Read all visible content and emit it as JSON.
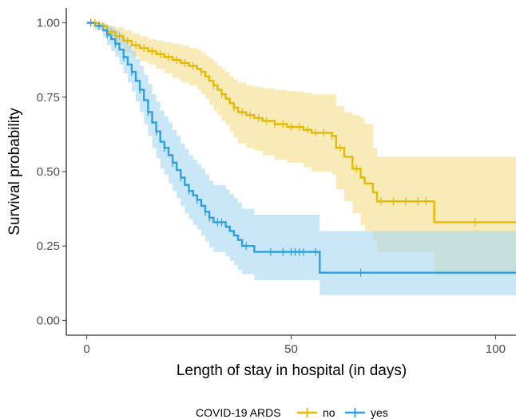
{
  "chart_data": {
    "type": "line",
    "subtype": "kaplan-meier step curves with confidence bands and censor marks",
    "title": "",
    "xlabel": "Length of stay in hospital (in days)",
    "ylabel": "Survival probability",
    "xlim": [
      -5,
      105
    ],
    "ylim": [
      -0.05,
      1.05
    ],
    "x_ticks": [
      0,
      50,
      100
    ],
    "x_tick_labels": [
      "0",
      "50",
      "100"
    ],
    "y_ticks": [
      0,
      0.25,
      0.5,
      0.75,
      1.0
    ],
    "y_tick_labels": [
      "0.00",
      "0.25",
      "0.50",
      "0.75",
      "1.00"
    ],
    "grid": false,
    "legend": {
      "title": "COVID-19 ARDS",
      "position": "bottom",
      "entries": [
        "no",
        "yes"
      ]
    },
    "series": [
      {
        "name": "no",
        "color": "#e7b800",
        "fill_color": "#f3df8d",
        "steps": [
          [
            0,
            1.0
          ],
          [
            3,
            0.99
          ],
          [
            5,
            0.97
          ],
          [
            7,
            0.955
          ],
          [
            9,
            0.94
          ],
          [
            11,
            0.925
          ],
          [
            13,
            0.915
          ],
          [
            15,
            0.905
          ],
          [
            17,
            0.895
          ],
          [
            19,
            0.885
          ],
          [
            21,
            0.875
          ],
          [
            23,
            0.865
          ],
          [
            25,
            0.855
          ],
          [
            27,
            0.845
          ],
          [
            28,
            0.835
          ],
          [
            29,
            0.82
          ],
          [
            30,
            0.805
          ],
          [
            31,
            0.79
          ],
          [
            32,
            0.775
          ],
          [
            33,
            0.76
          ],
          [
            34,
            0.745
          ],
          [
            35,
            0.73
          ],
          [
            36,
            0.715
          ],
          [
            37,
            0.7
          ],
          [
            39,
            0.69
          ],
          [
            41,
            0.68
          ],
          [
            43,
            0.67
          ],
          [
            46,
            0.66
          ],
          [
            49,
            0.65
          ],
          [
            53,
            0.64
          ],
          [
            55,
            0.63
          ],
          [
            60,
            0.62
          ],
          [
            61,
            0.58
          ],
          [
            63,
            0.55
          ],
          [
            65,
            0.51
          ],
          [
            67,
            0.48
          ],
          [
            68,
            0.46
          ],
          [
            70,
            0.43
          ],
          [
            71,
            0.4
          ],
          [
            85,
            0.33
          ],
          [
            105,
            0.33
          ]
        ],
        "lower": [
          [
            0,
            1.0
          ],
          [
            3,
            0.98
          ],
          [
            5,
            0.95
          ],
          [
            7,
            0.925
          ],
          [
            9,
            0.9
          ],
          [
            11,
            0.885
          ],
          [
            13,
            0.87
          ],
          [
            15,
            0.86
          ],
          [
            17,
            0.845
          ],
          [
            19,
            0.83
          ],
          [
            21,
            0.815
          ],
          [
            23,
            0.8
          ],
          [
            25,
            0.79
          ],
          [
            27,
            0.775
          ],
          [
            28,
            0.76
          ],
          [
            29,
            0.745
          ],
          [
            30,
            0.725
          ],
          [
            31,
            0.705
          ],
          [
            32,
            0.69
          ],
          [
            33,
            0.67
          ],
          [
            34,
            0.655
          ],
          [
            35,
            0.635
          ],
          [
            36,
            0.615
          ],
          [
            37,
            0.595
          ],
          [
            39,
            0.58
          ],
          [
            41,
            0.57
          ],
          [
            43,
            0.555
          ],
          [
            46,
            0.54
          ],
          [
            49,
            0.53
          ],
          [
            53,
            0.515
          ],
          [
            55,
            0.5
          ],
          [
            60,
            0.49
          ],
          [
            61,
            0.44
          ],
          [
            63,
            0.4
          ],
          [
            65,
            0.36
          ],
          [
            67,
            0.32
          ],
          [
            68,
            0.3
          ],
          [
            70,
            0.27
          ],
          [
            71,
            0.23
          ],
          [
            85,
            0.15
          ],
          [
            105,
            0.15
          ]
        ],
        "upper": [
          [
            0,
            1.0
          ],
          [
            3,
            1.0
          ],
          [
            5,
            0.99
          ],
          [
            7,
            0.985
          ],
          [
            9,
            0.975
          ],
          [
            11,
            0.965
          ],
          [
            13,
            0.955
          ],
          [
            15,
            0.945
          ],
          [
            17,
            0.94
          ],
          [
            19,
            0.935
          ],
          [
            21,
            0.93
          ],
          [
            23,
            0.925
          ],
          [
            25,
            0.915
          ],
          [
            27,
            0.91
          ],
          [
            28,
            0.9
          ],
          [
            29,
            0.89
          ],
          [
            30,
            0.88
          ],
          [
            31,
            0.87
          ],
          [
            32,
            0.855
          ],
          [
            33,
            0.845
          ],
          [
            34,
            0.835
          ],
          [
            35,
            0.82
          ],
          [
            36,
            0.81
          ],
          [
            37,
            0.8
          ],
          [
            39,
            0.79
          ],
          [
            41,
            0.785
          ],
          [
            43,
            0.78
          ],
          [
            46,
            0.775
          ],
          [
            49,
            0.77
          ],
          [
            53,
            0.765
          ],
          [
            55,
            0.76
          ],
          [
            60,
            0.76
          ],
          [
            61,
            0.72
          ],
          [
            63,
            0.7
          ],
          [
            65,
            0.69
          ],
          [
            67,
            0.68
          ],
          [
            68,
            0.66
          ],
          [
            70,
            0.58
          ],
          [
            71,
            0.55
          ],
          [
            85,
            0.55
          ],
          [
            105,
            0.55
          ]
        ],
        "censor_times": [
          2,
          4,
          6,
          8,
          10,
          12,
          14,
          16,
          18,
          20,
          22,
          24,
          26,
          28,
          31,
          33,
          36,
          38,
          40,
          42,
          44,
          46,
          48,
          50,
          52,
          54,
          56,
          58,
          60,
          62,
          66,
          72,
          75,
          78,
          81,
          83,
          95
        ]
      },
      {
        "name": "yes",
        "color": "#2e9fdf",
        "fill_color": "#aad8f2",
        "steps": [
          [
            0,
            1.0
          ],
          [
            2,
            0.99
          ],
          [
            4,
            0.975
          ],
          [
            5,
            0.96
          ],
          [
            6,
            0.945
          ],
          [
            7,
            0.93
          ],
          [
            8,
            0.91
          ],
          [
            9,
            0.885
          ],
          [
            10,
            0.86
          ],
          [
            11,
            0.835
          ],
          [
            12,
            0.805
          ],
          [
            13,
            0.775
          ],
          [
            14,
            0.74
          ],
          [
            15,
            0.7
          ],
          [
            16,
            0.665
          ],
          [
            17,
            0.635
          ],
          [
            18,
            0.6
          ],
          [
            19,
            0.58
          ],
          [
            20,
            0.555
          ],
          [
            21,
            0.53
          ],
          [
            22,
            0.505
          ],
          [
            23,
            0.48
          ],
          [
            24,
            0.455
          ],
          [
            25,
            0.435
          ],
          [
            26,
            0.42
          ],
          [
            27,
            0.405
          ],
          [
            28,
            0.385
          ],
          [
            29,
            0.365
          ],
          [
            30,
            0.345
          ],
          [
            31,
            0.33
          ],
          [
            34,
            0.315
          ],
          [
            35,
            0.3
          ],
          [
            36,
            0.285
          ],
          [
            37,
            0.27
          ],
          [
            38,
            0.25
          ],
          [
            41,
            0.23
          ],
          [
            57,
            0.16
          ],
          [
            105,
            0.16
          ]
        ],
        "lower": [
          [
            0,
            1.0
          ],
          [
            2,
            0.975
          ],
          [
            4,
            0.95
          ],
          [
            5,
            0.925
          ],
          [
            6,
            0.905
          ],
          [
            7,
            0.885
          ],
          [
            8,
            0.86
          ],
          [
            9,
            0.83
          ],
          [
            10,
            0.8
          ],
          [
            11,
            0.77
          ],
          [
            12,
            0.735
          ],
          [
            13,
            0.7
          ],
          [
            14,
            0.66
          ],
          [
            15,
            0.62
          ],
          [
            16,
            0.58
          ],
          [
            17,
            0.545
          ],
          [
            18,
            0.51
          ],
          [
            19,
            0.49
          ],
          [
            20,
            0.46
          ],
          [
            21,
            0.435
          ],
          [
            22,
            0.41
          ],
          [
            23,
            0.385
          ],
          [
            24,
            0.36
          ],
          [
            25,
            0.34
          ],
          [
            26,
            0.32
          ],
          [
            27,
            0.305
          ],
          [
            28,
            0.285
          ],
          [
            29,
            0.265
          ],
          [
            30,
            0.245
          ],
          [
            31,
            0.23
          ],
          [
            34,
            0.215
          ],
          [
            35,
            0.2
          ],
          [
            36,
            0.185
          ],
          [
            37,
            0.17
          ],
          [
            38,
            0.155
          ],
          [
            41,
            0.135
          ],
          [
            57,
            0.085
          ],
          [
            105,
            0.085
          ]
        ],
        "upper": [
          [
            0,
            1.0
          ],
          [
            2,
            1.0
          ],
          [
            4,
            0.995
          ],
          [
            5,
            0.99
          ],
          [
            6,
            0.985
          ],
          [
            7,
            0.975
          ],
          [
            8,
            0.965
          ],
          [
            9,
            0.945
          ],
          [
            10,
            0.925
          ],
          [
            11,
            0.905
          ],
          [
            12,
            0.88
          ],
          [
            13,
            0.855
          ],
          [
            14,
            0.825
          ],
          [
            15,
            0.795
          ],
          [
            16,
            0.76
          ],
          [
            17,
            0.735
          ],
          [
            18,
            0.705
          ],
          [
            19,
            0.685
          ],
          [
            20,
            0.665
          ],
          [
            21,
            0.64
          ],
          [
            22,
            0.62
          ],
          [
            23,
            0.595
          ],
          [
            24,
            0.575
          ],
          [
            25,
            0.555
          ],
          [
            26,
            0.54
          ],
          [
            27,
            0.525
          ],
          [
            28,
            0.51
          ],
          [
            29,
            0.49
          ],
          [
            30,
            0.47
          ],
          [
            31,
            0.455
          ],
          [
            34,
            0.44
          ],
          [
            35,
            0.425
          ],
          [
            36,
            0.41
          ],
          [
            37,
            0.395
          ],
          [
            38,
            0.375
          ],
          [
            41,
            0.355
          ],
          [
            57,
            0.3
          ],
          [
            105,
            0.3
          ]
        ],
        "censor_times": [
          1,
          3,
          5,
          7,
          9,
          11,
          13,
          15,
          17,
          19,
          21,
          23,
          25,
          27,
          29,
          30,
          32,
          33,
          39,
          45,
          48,
          50,
          51,
          52,
          53,
          56,
          67
        ]
      }
    ]
  }
}
